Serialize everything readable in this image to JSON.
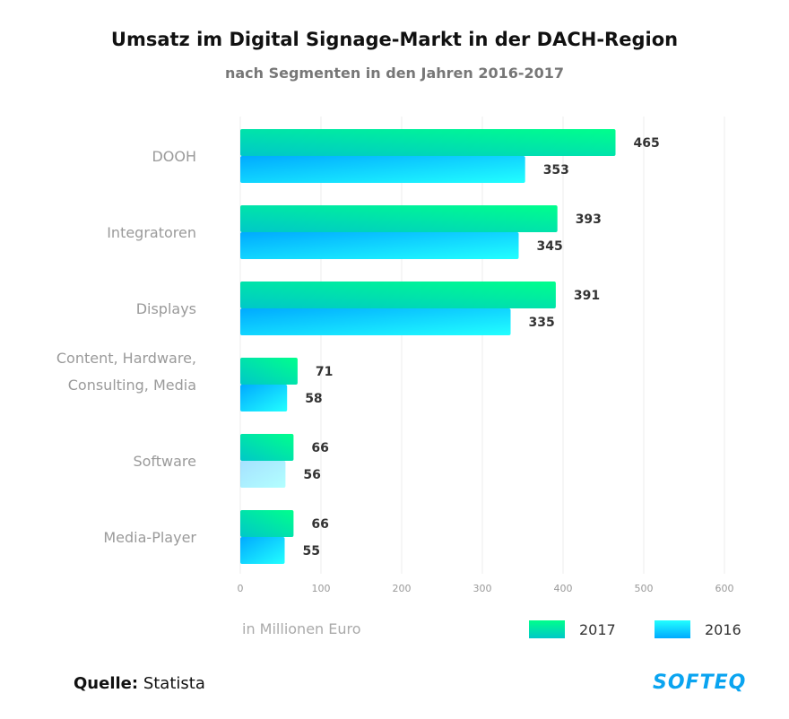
{
  "chart_data": {
    "type": "bar",
    "orientation": "horizontal",
    "title": "Umsatz im Digital Signage-Markt in der DACH-Region",
    "subtitle": "nach Segmenten in den Jahren 2016-2017",
    "categories": [
      "DOOH",
      "Integratoren",
      "Displays",
      [
        "Content, Hardware,",
        "Consulting, Media"
      ],
      "Software",
      "Media-Player"
    ],
    "series": [
      {
        "name": "2017",
        "values": [
          465,
          393,
          391,
          71,
          66,
          66
        ],
        "colors": [
          "#00c8c8",
          "#00ff8c"
        ]
      },
      {
        "name": "2016",
        "values": [
          353,
          345,
          335,
          58,
          56,
          55
        ],
        "colors": [
          "#00aaff",
          "#22ffff"
        ]
      }
    ],
    "xlim": [
      0,
      600
    ],
    "xticks": [
      0,
      100,
      200,
      300,
      400,
      500,
      600
    ],
    "xlabel": "in Millionen Euro",
    "grid": true,
    "legend": "bottom-right"
  },
  "source_label": "Quelle:",
  "source_value": "Statista",
  "logo": "SOFTEQ"
}
